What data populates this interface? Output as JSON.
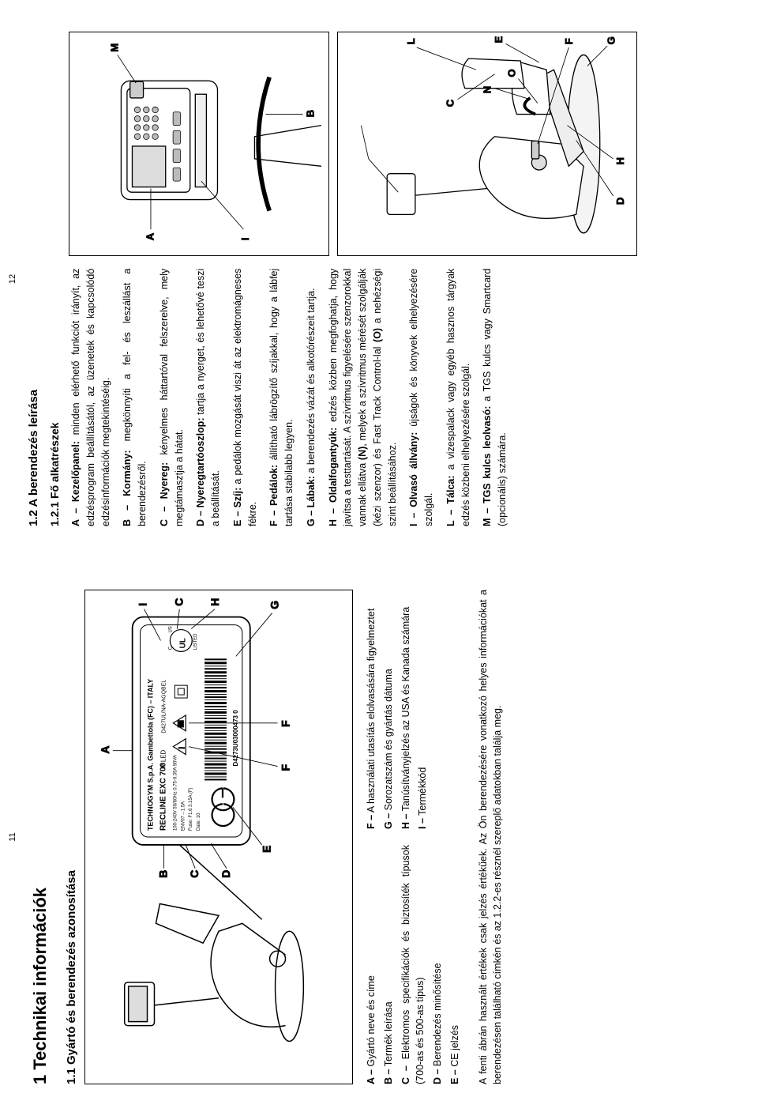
{
  "page_left": {
    "pageno": "11",
    "h1": "1  Technikai információk",
    "h2": "1.1  Gyártó és berendezés azonosítása",
    "figure1": {
      "label_product": "RECLINE EXC 700",
      "label_mfg": "TECHNOGYM S.p.A.   Gambettola (FC) – ITALY",
      "callouts_left": [
        "B",
        "C",
        "D",
        "E"
      ],
      "callouts_top": "A",
      "callouts_right": [
        "I",
        "C",
        "H",
        "G"
      ],
      "callouts_bottom": [
        "F",
        "F"
      ]
    },
    "list_left": [
      {
        "l": "A –",
        "t": "Gyártó neve és címe"
      },
      {
        "l": "B –",
        "t": "Termék leírása"
      },
      {
        "l": "C –",
        "t": "Elektromos specifikációk és biztosíték típusok (700-as és 500-as típus)"
      },
      {
        "l": "D –",
        "t": "Berendezés minősítése"
      },
      {
        "l": "E –",
        "t": "CE jelzés"
      }
    ],
    "list_right": [
      {
        "l": "F –",
        "t": "A használati utasítás elolvasására figyelmeztet"
      },
      {
        "l": "G –",
        "t": "Sorozatszám és gyártás dátuma"
      },
      {
        "l": "H –",
        "t": "Tanúsítványjelzés az USA és Kanada számára"
      },
      {
        "l": "I  –",
        "t": "Termékkód"
      }
    ],
    "footnote": "A fenti ábrán használt értékek csak jelzés értékűek. Az Ön berendezésére vonatkozó helyes információkat a berendezésen található címkén és az 1.2.2-es résznél szereplő adatokban találja meg."
  },
  "page_right": {
    "pageno": "12",
    "h2": "1.2  A berendezés leírása",
    "h3": "1.2.1  Fő alkatrészek",
    "list": [
      {
        "l": "A –",
        "t": "<b>Kezelőpanel:</b> minden elérhető funkciót irányít, az edzésprogram beállításától, az üzenetek és kapcsolódó edzésinformációk megtekintéséig."
      },
      {
        "l": "B –",
        "t": "<b>Kormány:</b> megkönnyíti a fel- és leszállást a berendezésről."
      },
      {
        "l": "C –",
        "t": "<b>Nyereg:</b> kényelmes háttartóval felszerelve, mely megtámasztja a hátat."
      },
      {
        "l": "D –",
        "t": "<b>Nyeregtartóoszlop:</b> tartja a nyerget, és lehetővé teszi a beállítását."
      },
      {
        "l": "E –",
        "t": "<b>Szíj:</b> a pedálok mozgását viszi át az elektromágneses fékre."
      },
      {
        "l": "F –",
        "t": "<b>Pedálok:</b> állítható lábrögzítő szíjakkal, hogy a lábfej tartása stabilabb legyen."
      },
      {
        "l": "G –",
        "t": "<b>Lábak:</b> a berendezés vázát és alkotórészeit tartja."
      },
      {
        "l": "H –",
        "t": "<b>Oldalfogantyúk:</b> edzés közben megfoghatja, hogy javítsa a testtartását. A szívritmus figyelésére szenzorokkal vannak ellátva <b>(N)</b>, melyek a szívritmus mérését szolgálják (kézi szenzor) és Fast Track Control-lal <b>(O)</b> a nehézségi szint beállításához."
      },
      {
        "l": "I  –",
        "t": "<b>Olvasó állvány:</b> újságok és könyvek elhelyezésére szolgál."
      },
      {
        "l": "L –",
        "t": "<b>Tálca:</b> a vizespalack vagy egyéb hasznos tárgyak edzés közbeni elhelyezésére szolgál."
      },
      {
        "l": "M –",
        "t": "<b>TGS kulcs leolvasó:</b> a TGS kulcs vagy Smartcard (opcionális) számára."
      }
    ],
    "callouts_fig2": {
      "A": "A",
      "I": "I",
      "M": "M",
      "B": "B"
    },
    "callouts_fig3": {
      "C": "C",
      "D": "D",
      "E": "E",
      "F": "F",
      "G": "G",
      "H": "H",
      "L": "L",
      "N": "N",
      "O": "O"
    }
  }
}
